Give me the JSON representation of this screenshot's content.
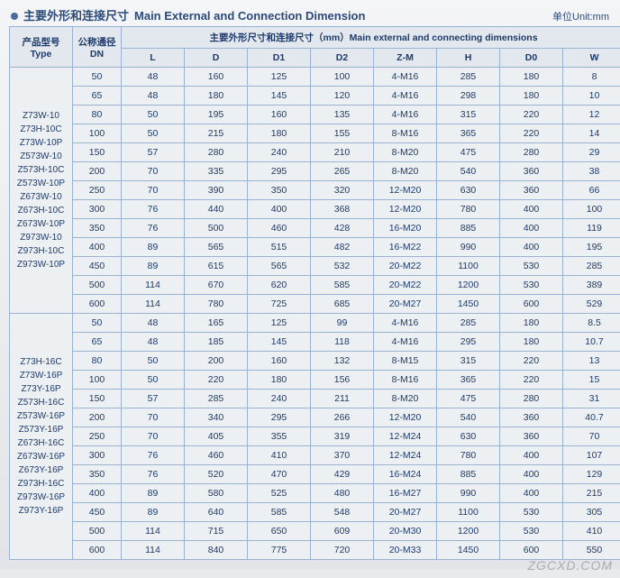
{
  "title": {
    "cn": "主要外形和连接尺寸",
    "en": "Main External and Connection Dimension"
  },
  "unit_label": "单位Unit:mm",
  "header": {
    "type_cn": "产品型号",
    "type_en": "Type",
    "dn_cn": "公称通径",
    "dn_en": "DN",
    "dims_cn": "主要外形尺寸和连接尺寸（mm）Main external and connecting dimensions",
    "cols": [
      "L",
      "D",
      "D1",
      "D2",
      "Z-M",
      "H",
      "D0",
      "W"
    ]
  },
  "groups": [
    {
      "types": [
        "Z73W-10",
        "Z73H-10C",
        "Z73W-10P",
        "Z573W-10",
        "Z573H-10C",
        "Z573W-10P",
        "Z673W-10",
        "Z673H-10C",
        "Z673W-10P",
        "Z973W-10",
        "Z973H-10C",
        "Z973W-10P"
      ],
      "rows": [
        {
          "dn": "50",
          "L": "48",
          "D": "160",
          "D1": "125",
          "D2": "100",
          "ZM": "4-M16",
          "H": "285",
          "D0": "180",
          "W": "8"
        },
        {
          "dn": "65",
          "L": "48",
          "D": "180",
          "D1": "145",
          "D2": "120",
          "ZM": "4-M16",
          "H": "298",
          "D0": "180",
          "W": "10"
        },
        {
          "dn": "80",
          "L": "50",
          "D": "195",
          "D1": "160",
          "D2": "135",
          "ZM": "4-M16",
          "H": "315",
          "D0": "220",
          "W": "12"
        },
        {
          "dn": "100",
          "L": "50",
          "D": "215",
          "D1": "180",
          "D2": "155",
          "ZM": "8-M16",
          "H": "365",
          "D0": "220",
          "W": "14"
        },
        {
          "dn": "150",
          "L": "57",
          "D": "280",
          "D1": "240",
          "D2": "210",
          "ZM": "8-M20",
          "H": "475",
          "D0": "280",
          "W": "29"
        },
        {
          "dn": "200",
          "L": "70",
          "D": "335",
          "D1": "295",
          "D2": "265",
          "ZM": "8-M20",
          "H": "540",
          "D0": "360",
          "W": "38"
        },
        {
          "dn": "250",
          "L": "70",
          "D": "390",
          "D1": "350",
          "D2": "320",
          "ZM": "12-M20",
          "H": "630",
          "D0": "360",
          "W": "66"
        },
        {
          "dn": "300",
          "L": "76",
          "D": "440",
          "D1": "400",
          "D2": "368",
          "ZM": "12-M20",
          "H": "780",
          "D0": "400",
          "W": "100"
        },
        {
          "dn": "350",
          "L": "76",
          "D": "500",
          "D1": "460",
          "D2": "428",
          "ZM": "16-M20",
          "H": "885",
          "D0": "400",
          "W": "119"
        },
        {
          "dn": "400",
          "L": "89",
          "D": "565",
          "D1": "515",
          "D2": "482",
          "ZM": "16-M22",
          "H": "990",
          "D0": "400",
          "W": "195"
        },
        {
          "dn": "450",
          "L": "89",
          "D": "615",
          "D1": "565",
          "D2": "532",
          "ZM": "20-M22",
          "H": "1100",
          "D0": "530",
          "W": "285"
        },
        {
          "dn": "500",
          "L": "114",
          "D": "670",
          "D1": "620",
          "D2": "585",
          "ZM": "20-M22",
          "H": "1200",
          "D0": "530",
          "W": "389"
        },
        {
          "dn": "600",
          "L": "114",
          "D": "780",
          "D1": "725",
          "D2": "685",
          "ZM": "20-M27",
          "H": "1450",
          "D0": "600",
          "W": "529"
        }
      ]
    },
    {
      "types": [
        "Z73H-16C",
        "Z73W-16P",
        "Z73Y-16P",
        "Z573H-16C",
        "Z573W-16P",
        "Z573Y-16P",
        "Z673H-16C",
        "Z673W-16P",
        "Z673Y-16P",
        "Z973H-16C",
        "Z973W-16P",
        "Z973Y-16P"
      ],
      "rows": [
        {
          "dn": "50",
          "L": "48",
          "D": "165",
          "D1": "125",
          "D2": "99",
          "ZM": "4-M16",
          "H": "285",
          "D0": "180",
          "W": "8.5"
        },
        {
          "dn": "65",
          "L": "48",
          "D": "185",
          "D1": "145",
          "D2": "118",
          "ZM": "4-M16",
          "H": "295",
          "D0": "180",
          "W": "10.7"
        },
        {
          "dn": "80",
          "L": "50",
          "D": "200",
          "D1": "160",
          "D2": "132",
          "ZM": "8-M15",
          "H": "315",
          "D0": "220",
          "W": "13"
        },
        {
          "dn": "100",
          "L": "50",
          "D": "220",
          "D1": "180",
          "D2": "156",
          "ZM": "8-M16",
          "H": "365",
          "D0": "220",
          "W": "15"
        },
        {
          "dn": "150",
          "L": "57",
          "D": "285",
          "D1": "240",
          "D2": "211",
          "ZM": "8-M20",
          "H": "475",
          "D0": "280",
          "W": "31"
        },
        {
          "dn": "200",
          "L": "70",
          "D": "340",
          "D1": "295",
          "D2": "266",
          "ZM": "12-M20",
          "H": "540",
          "D0": "360",
          "W": "40.7"
        },
        {
          "dn": "250",
          "L": "70",
          "D": "405",
          "D1": "355",
          "D2": "319",
          "ZM": "12-M24",
          "H": "630",
          "D0": "360",
          "W": "70"
        },
        {
          "dn": "300",
          "L": "76",
          "D": "460",
          "D1": "410",
          "D2": "370",
          "ZM": "12-M24",
          "H": "780",
          "D0": "400",
          "W": "107"
        },
        {
          "dn": "350",
          "L": "76",
          "D": "520",
          "D1": "470",
          "D2": "429",
          "ZM": "16-M24",
          "H": "885",
          "D0": "400",
          "W": "129"
        },
        {
          "dn": "400",
          "L": "89",
          "D": "580",
          "D1": "525",
          "D2": "480",
          "ZM": "16-M27",
          "H": "990",
          "D0": "400",
          "W": "215"
        },
        {
          "dn": "450",
          "L": "89",
          "D": "640",
          "D1": "585",
          "D2": "548",
          "ZM": "20-M27",
          "H": "1100",
          "D0": "530",
          "W": "305"
        },
        {
          "dn": "500",
          "L": "114",
          "D": "715",
          "D1": "650",
          "D2": "609",
          "ZM": "20-M30",
          "H": "1200",
          "D0": "530",
          "W": "410"
        },
        {
          "dn": "600",
          "L": "114",
          "D": "840",
          "D1": "775",
          "D2": "720",
          "ZM": "20-M33",
          "H": "1450",
          "D0": "600",
          "W": "550"
        }
      ]
    }
  ],
  "watermark": "ZGCXD.COM"
}
